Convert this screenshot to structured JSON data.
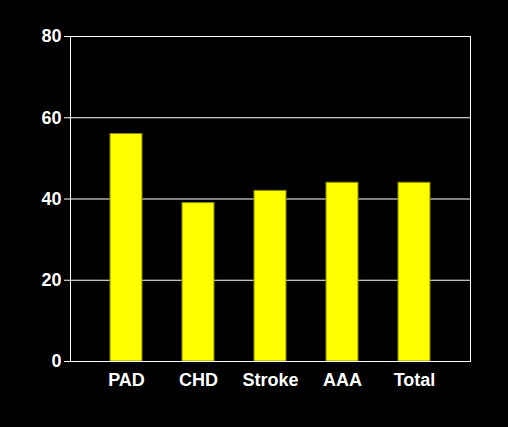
{
  "chart_data": {
    "type": "bar",
    "categories": [
      "PAD",
      "CHD",
      "Stroke",
      "AAA",
      "Total"
    ],
    "values": [
      56,
      39,
      42,
      44,
      44
    ],
    "color": "#ffff00",
    "ylim": [
      0,
      80
    ],
    "yticks": [
      0,
      20,
      40,
      60,
      80
    ],
    "grid": true
  }
}
